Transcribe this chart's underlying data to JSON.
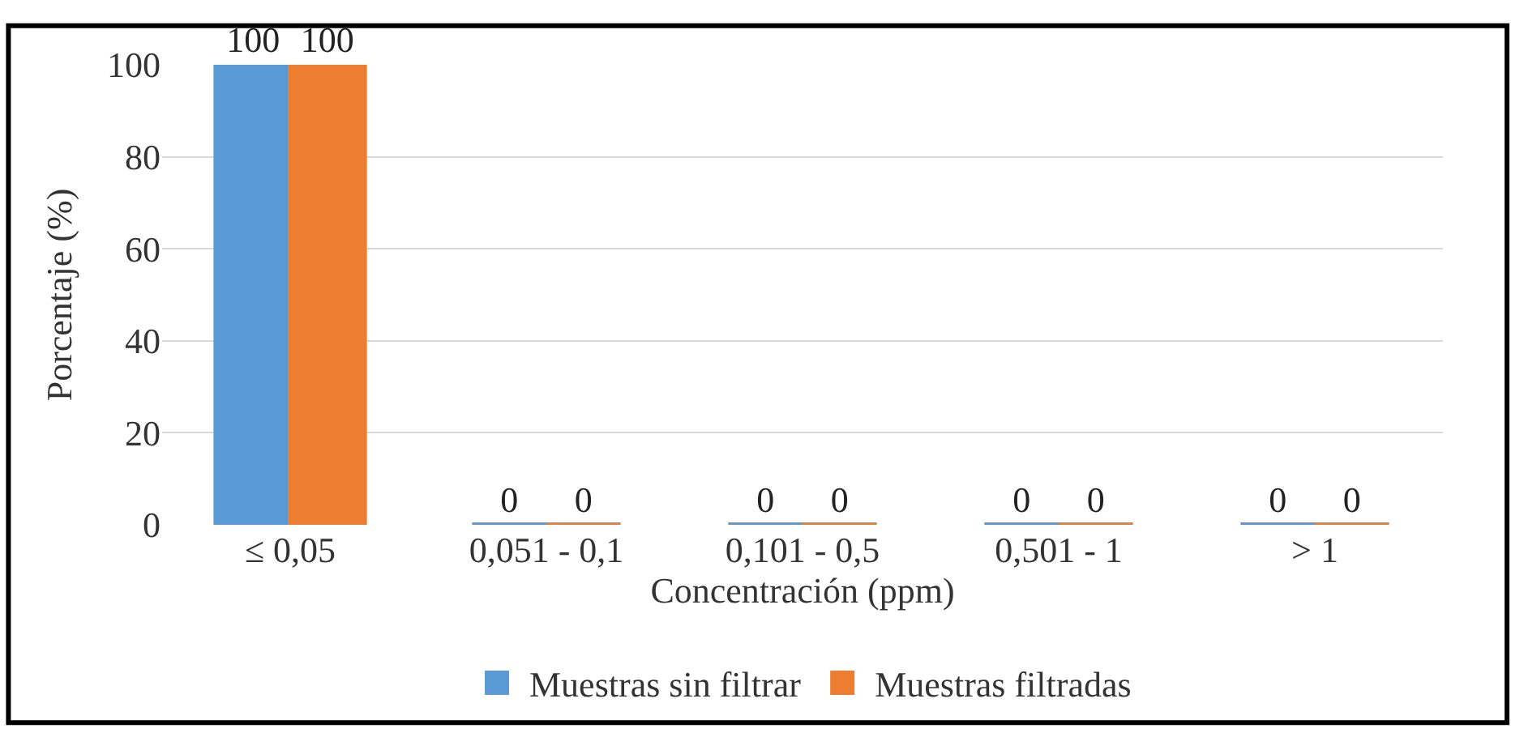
{
  "chart_data": {
    "type": "bar",
    "xlabel": "Concentración (ppm)",
    "ylabel": "Porcentaje (%)",
    "categories": [
      "≤ 0,05",
      "0,051 - 0,1",
      "0,101 - 0,5",
      "0,501 - 1",
      "> 1"
    ],
    "series": [
      {
        "name": "Muestras sin filtrar",
        "color": "#5b9bd5",
        "values": [
          100,
          0,
          0,
          0,
          0
        ]
      },
      {
        "name": "Muestras filtradas",
        "color": "#ed7d31",
        "values": [
          100,
          0,
          0,
          0,
          0
        ]
      }
    ],
    "ylim": [
      0,
      100
    ],
    "yticks": [
      0,
      20,
      40,
      60,
      80,
      100
    ],
    "grid": "y",
    "legend": "bottom",
    "data_labels": true
  }
}
